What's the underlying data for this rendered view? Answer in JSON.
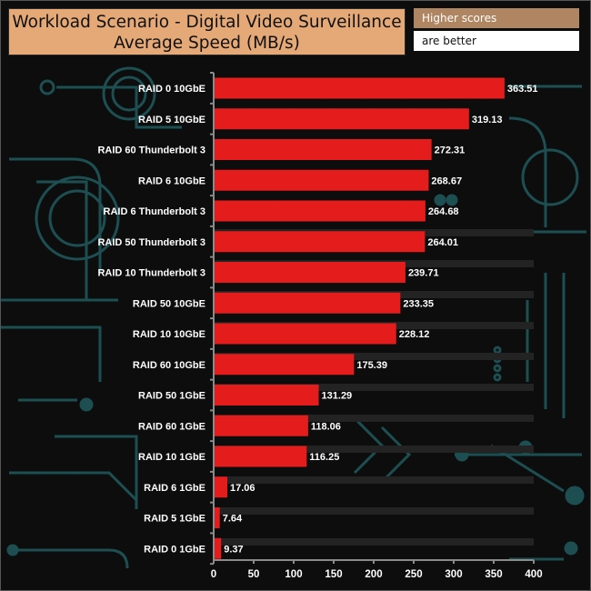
{
  "header": {
    "title_line1": "Workload Scenario - Digital Video Surveillance",
    "title_line2": "Average Speed (MB/s)",
    "badge_top": "Higher scores",
    "badge_bottom": "are better"
  },
  "colors": {
    "bar": "#e41c1c",
    "title_bg": "#e4a976",
    "badge_top_bg": "#b08662",
    "background": "#0d0d0d",
    "circuit": "#1d4f52"
  },
  "chart_data": {
    "type": "bar",
    "orientation": "horizontal",
    "title": "Workload Scenario - Digital Video Surveillance",
    "subtitle": "Average Speed (MB/s)",
    "categories": [
      "RAID 0 10GbE",
      "RAID 5 10GbE",
      "RAID 60 Thunderbolt 3",
      "RAID 6 10GbE",
      "RAID 6 Thunderbolt 3",
      "RAID 50 Thunderbolt 3",
      "RAID 10 Thunderbolt 3",
      "RAID 50 10GbE",
      "RAID 10 10GbE",
      "RAID 60 10GbE",
      "RAID 50 1GbE",
      "RAID 60 1GbE",
      "RAID 10 1GbE",
      "RAID 6 1GbE",
      "RAID 5 1GbE",
      "RAID 0 1GbE"
    ],
    "values": [
      363.51,
      319.13,
      272.31,
      268.67,
      264.68,
      264.01,
      239.71,
      233.35,
      228.12,
      175.39,
      131.29,
      118.06,
      116.25,
      17.06,
      7.64,
      9.37
    ],
    "value_labels": [
      "363.51",
      "319.13",
      "272.31",
      "268.67",
      "264.68",
      "264.01",
      "239.71",
      "233.35",
      "228.12",
      "175.39",
      "131.29",
      "118.06",
      "116.25",
      "17.06",
      "7.64",
      "9.37"
    ],
    "xlim": [
      0,
      400
    ],
    "x_ticks": [
      0,
      50,
      100,
      150,
      200,
      250,
      300,
      350,
      400
    ],
    "xlabel": "",
    "ylabel": "",
    "grid": false,
    "legend": "none"
  }
}
